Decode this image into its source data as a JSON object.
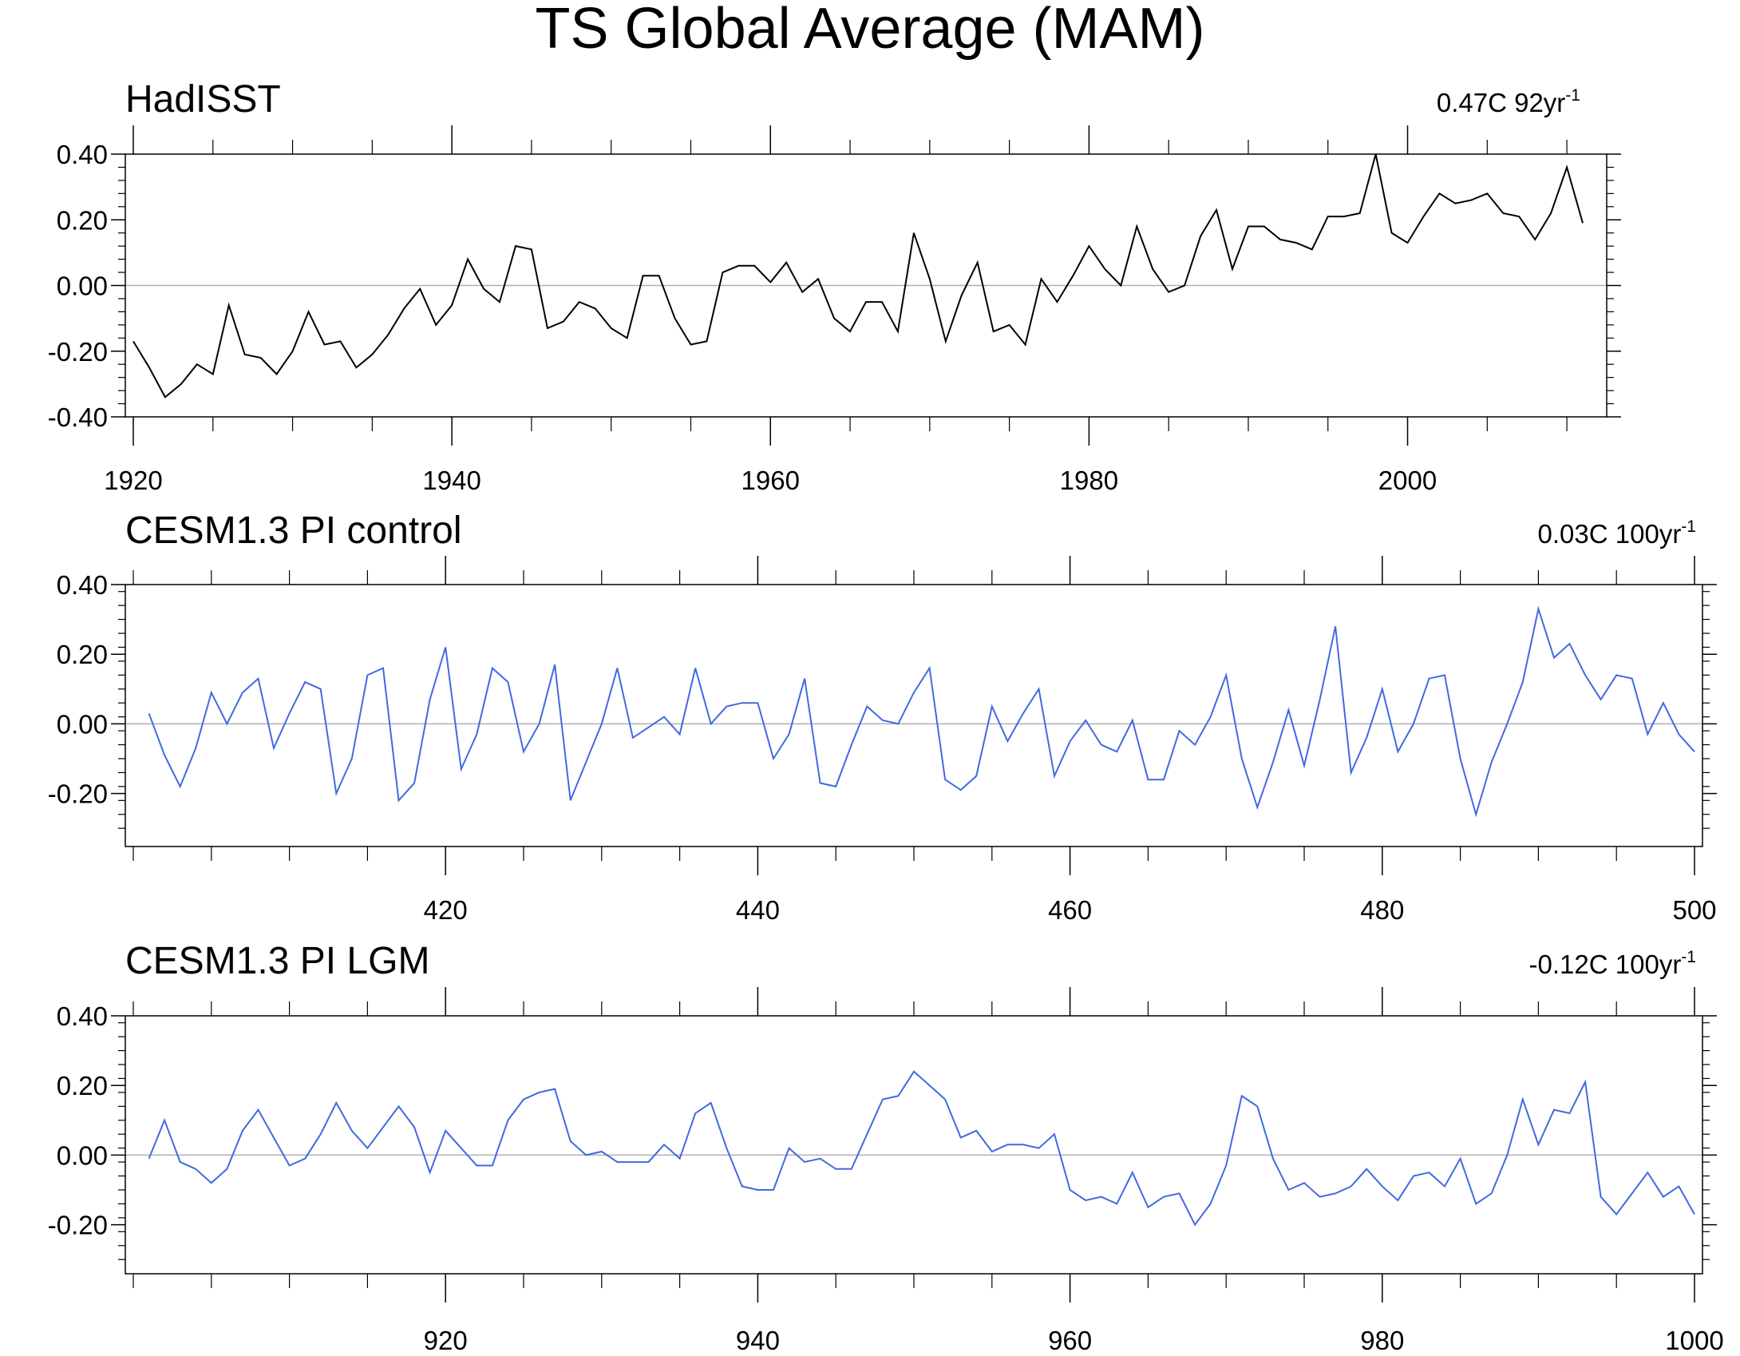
{
  "figure": {
    "title": "TS Global Average (MAM)"
  },
  "chart_data": [
    {
      "type": "line",
      "title": "HadISST",
      "trend": {
        "value": "0.47C 92yr",
        "sup": "-1"
      },
      "xlabel": "",
      "ylabel": "",
      "xlim": [
        1920,
        2012
      ],
      "ylim": [
        -0.4,
        0.4
      ],
      "xticks": [
        1920,
        1940,
        1960,
        1980,
        2000
      ],
      "xtick_labels": [
        "1920",
        "1940",
        "1960",
        "1980",
        "2000"
      ],
      "yticks": [
        0.4,
        0.2,
        0.0,
        -0.2,
        -0.4
      ],
      "ytick_labels": [
        "0.40",
        "0.20",
        "0.00",
        "-0.20",
        "-0.40"
      ],
      "zero_line": true,
      "series": [
        {
          "color": "#000000",
          "x_start": 1920,
          "values": [
            -0.17,
            -0.25,
            -0.34,
            -0.3,
            -0.24,
            -0.27,
            -0.06,
            -0.21,
            -0.22,
            -0.27,
            -0.2,
            -0.08,
            -0.18,
            -0.17,
            -0.25,
            -0.21,
            -0.15,
            -0.07,
            -0.01,
            -0.12,
            -0.06,
            0.08,
            -0.01,
            -0.05,
            0.12,
            0.11,
            -0.13,
            -0.11,
            -0.05,
            -0.07,
            -0.13,
            -0.16,
            0.03,
            0.03,
            -0.1,
            -0.18,
            -0.17,
            0.04,
            0.06,
            0.06,
            0.01,
            0.07,
            -0.02,
            0.02,
            -0.1,
            -0.14,
            -0.05,
            -0.05,
            -0.14,
            0.16,
            0.02,
            -0.17,
            -0.03,
            0.07,
            -0.14,
            -0.12,
            -0.18,
            0.02,
            -0.05,
            0.03,
            0.12,
            0.05,
            0.0,
            0.18,
            0.05,
            -0.02,
            0.0,
            0.15,
            0.23,
            0.05,
            0.18,
            0.18,
            0.14,
            0.13,
            0.11,
            0.21,
            0.21,
            0.22,
            0.4,
            0.16,
            0.13,
            0.21,
            0.28,
            0.25,
            0.26,
            0.28,
            0.22,
            0.21,
            0.14,
            0.22,
            0.36,
            0.19
          ]
        }
      ]
    },
    {
      "type": "line",
      "title": "CESM1.3 PI control",
      "trend": {
        "value": "0.03C 100yr",
        "sup": "-1"
      },
      "xlabel": "",
      "ylabel": "",
      "xlim": [
        400,
        500
      ],
      "ylim": [
        -0.3,
        0.4
      ],
      "xticks": [
        420,
        440,
        460,
        480,
        500
      ],
      "xtick_labels": [
        "420",
        "440",
        "460",
        "480",
        "500"
      ],
      "yticks": [
        0.4,
        0.2,
        0.0,
        -0.2
      ],
      "ytick_labels": [
        "0.40",
        "0.20",
        "0.00",
        "-0.20"
      ],
      "zero_line": true,
      "series": [
        {
          "color": "#4169e1",
          "x_start": 401,
          "values": [
            0.03,
            -0.09,
            -0.18,
            -0.07,
            0.09,
            0.0,
            0.09,
            0.13,
            -0.07,
            0.03,
            0.12,
            0.1,
            -0.2,
            -0.1,
            0.14,
            0.16,
            -0.22,
            -0.17,
            0.07,
            0.22,
            -0.13,
            -0.03,
            0.16,
            0.12,
            -0.08,
            0.0,
            0.17,
            -0.22,
            -0.11,
            0.0,
            0.16,
            -0.04,
            -0.01,
            0.02,
            -0.03,
            0.16,
            0.0,
            0.05,
            0.06,
            0.06,
            -0.1,
            -0.03,
            0.13,
            -0.17,
            -0.18,
            -0.06,
            0.05,
            0.01,
            0.0,
            0.09,
            0.16,
            -0.16,
            -0.19,
            -0.15,
            0.05,
            -0.05,
            0.03,
            0.1,
            -0.15,
            -0.05,
            0.01,
            -0.06,
            -0.08,
            0.01,
            -0.16,
            -0.16,
            -0.02,
            -0.06,
            0.02,
            0.14,
            -0.1,
            -0.24,
            -0.11,
            0.04,
            -0.12,
            0.07,
            0.28,
            -0.14,
            -0.04,
            0.1,
            -0.08,
            0.0,
            0.13,
            0.14,
            -0.1,
            -0.26,
            -0.11,
            0.0,
            0.12,
            0.33,
            0.19,
            0.23,
            0.14,
            0.07,
            0.14,
            0.13,
            -0.03,
            0.06,
            -0.03,
            -0.08
          ]
        }
      ]
    },
    {
      "type": "line",
      "title": "CESM1.3 PI LGM",
      "trend": {
        "value": "-0.12C 100yr",
        "sup": "-1"
      },
      "xlabel": "",
      "ylabel": "",
      "xlim": [
        900,
        1000
      ],
      "ylim": [
        -0.3,
        0.4
      ],
      "xticks": [
        920,
        940,
        960,
        980,
        1000
      ],
      "xtick_labels": [
        "920",
        "940",
        "960",
        "980",
        "1000"
      ],
      "yticks": [
        0.4,
        0.2,
        0.0,
        -0.2
      ],
      "ytick_labels": [
        "0.40",
        "0.20",
        "0.00",
        "-0.20"
      ],
      "zero_line": true,
      "series": [
        {
          "color": "#4169e1",
          "x_start": 901,
          "values": [
            -0.01,
            0.1,
            -0.02,
            -0.04,
            -0.08,
            -0.04,
            0.07,
            0.13,
            0.05,
            -0.03,
            -0.01,
            0.06,
            0.15,
            0.07,
            0.02,
            0.08,
            0.14,
            0.08,
            -0.05,
            0.07,
            0.02,
            -0.03,
            -0.03,
            0.1,
            0.16,
            0.18,
            0.19,
            0.04,
            0.0,
            0.01,
            -0.02,
            -0.02,
            -0.02,
            0.03,
            -0.01,
            0.12,
            0.15,
            0.02,
            -0.09,
            -0.1,
            -0.1,
            0.02,
            -0.02,
            -0.01,
            -0.04,
            -0.04,
            0.06,
            0.16,
            0.17,
            0.24,
            0.2,
            0.16,
            0.05,
            0.07,
            0.01,
            0.03,
            0.03,
            0.02,
            0.06,
            -0.1,
            -0.13,
            -0.12,
            -0.14,
            -0.05,
            -0.15,
            -0.12,
            -0.11,
            -0.2,
            -0.14,
            -0.03,
            0.17,
            0.14,
            -0.01,
            -0.1,
            -0.08,
            -0.12,
            -0.11,
            -0.09,
            -0.04,
            -0.09,
            -0.13,
            -0.06,
            -0.05,
            -0.09,
            -0.01,
            -0.14,
            -0.11,
            0.0,
            0.16,
            0.03,
            0.13,
            0.12,
            0.21,
            -0.12,
            -0.17,
            -0.11,
            -0.05,
            -0.12,
            -0.09,
            -0.17
          ]
        }
      ]
    }
  ]
}
